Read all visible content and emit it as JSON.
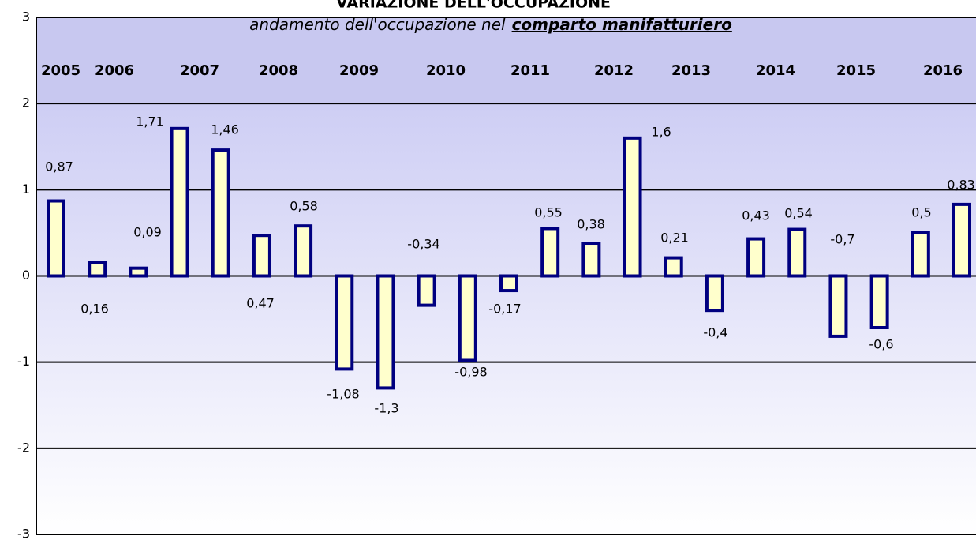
{
  "chart_data": {
    "type": "bar",
    "title": "VARIAZIONE DELL'OCCUPAZIONE",
    "subtitle": "andamento dell'occupazione nel",
    "subtitle_emphasis": "comparto manifatturiero",
    "categories": [
      null,
      null,
      null,
      null,
      null,
      null,
      null,
      null,
      null,
      null,
      null,
      null,
      null,
      null,
      null,
      null,
      null,
      null,
      null,
      null,
      null,
      null,
      null
    ],
    "values": [
      0.87,
      0.16,
      0.09,
      1.71,
      1.46,
      0.47,
      0.58,
      -1.08,
      -1.3,
      -0.34,
      -0.98,
      -0.17,
      0.55,
      0.38,
      1.6,
      0.21,
      -0.4,
      0.43,
      0.54,
      -0.7,
      -0.6,
      0.5,
      0.83
    ],
    "value_labels": [
      "0,87",
      "0,16",
      "0,09",
      "1,71",
      "1,46",
      "0,47",
      "0,58",
      "-1,08",
      "-1,3",
      "-0,34",
      "-0,98",
      "-0,17",
      "0,55",
      "0,38",
      "1,6",
      "0,21",
      "-0,4",
      "0,43",
      "0,54",
      "-0,7",
      "-0,6",
      "0,5",
      "0,83"
    ],
    "annotations": [
      "2005",
      "2006",
      "2007",
      "2008",
      "2009",
      "2010",
      "2011",
      "2012",
      "2013",
      "2014",
      "2015",
      "2016"
    ],
    "color": "#ffffcc",
    "edge_color": "#000080",
    "ylim": [
      -3,
      3
    ],
    "yticks": [
      -3,
      -2,
      -1,
      0,
      1,
      2,
      3
    ],
    "grid": true
  }
}
